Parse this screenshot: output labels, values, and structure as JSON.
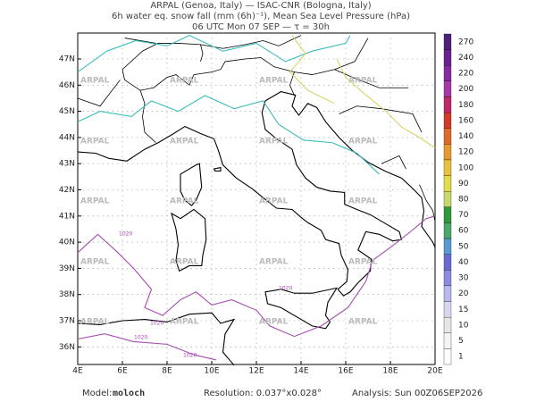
{
  "header": {
    "line1": "ARPAL (Genoa, Italy)  —  ISAC-CNR (Bologna, Italy)",
    "line2": "6h water eq. snow fall (mm (6h)⁻¹), Mean Sea Level Pressure (hPa)",
    "line3": "06 UTC Mon 07 SEP  —  τ = 30h"
  },
  "map": {
    "latitude_labels": [
      "47N",
      "46N",
      "45N",
      "44N",
      "43N",
      "42N",
      "41N",
      "40N",
      "39N",
      "38N",
      "37N",
      "36N"
    ],
    "longitude_labels": [
      "4E",
      "6E",
      "8E",
      "10E",
      "12E",
      "14E",
      "16E",
      "18E",
      "20E"
    ],
    "watermark": "ARPAL",
    "isobar_label": "1020"
  },
  "colorbar": {
    "labels": [
      "270",
      "240",
      "220",
      "200",
      "180",
      "160",
      "140",
      "120",
      "100",
      "90",
      "80",
      "70",
      "60",
      "50",
      "40",
      "30",
      "20",
      "15",
      "10",
      "5",
      "1"
    ]
  },
  "footer": {
    "model_label": "Model:",
    "model": "moloch",
    "resolution": "Resolution: 0.037°x0.028°",
    "analysis": "Analysis: Sun 00Z06SEP2026"
  }
}
